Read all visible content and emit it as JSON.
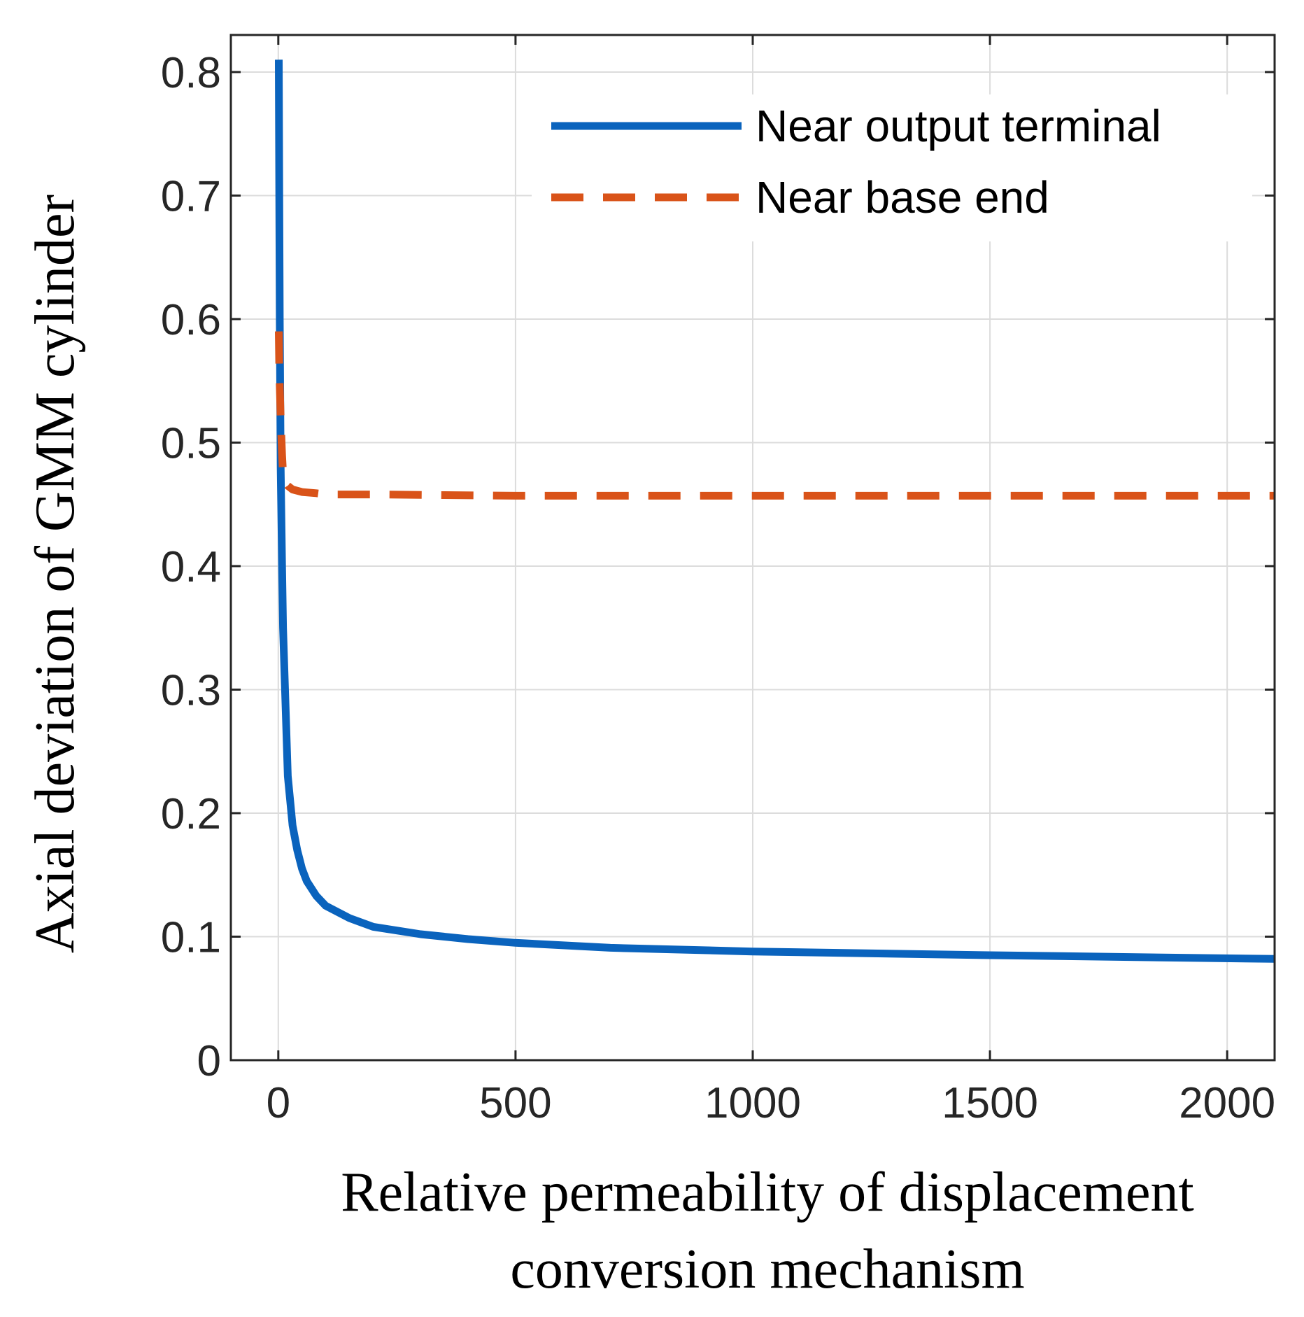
{
  "chart_data": {
    "type": "line",
    "title": "",
    "xlabel_lines": [
      "Relative permeability of displacement",
      "conversion mechanism"
    ],
    "ylabel": "Axial deviation of GMM cylinder",
    "xlim": [
      -100,
      2100
    ],
    "ylim": [
      0,
      0.83
    ],
    "xticks": [
      0,
      500,
      1000,
      1500,
      2000
    ],
    "xtick_labels": [
      "0",
      "500",
      "1000",
      "1500",
      "2000"
    ],
    "yticks": [
      0,
      0.1,
      0.2,
      0.3,
      0.4,
      0.5,
      0.6,
      0.7,
      0.8
    ],
    "ytick_labels": [
      "0",
      "0.1",
      "0.2",
      "0.3",
      "0.4",
      "0.5",
      "0.6",
      "0.7",
      "0.8"
    ],
    "grid": true,
    "legend_position": "top-right",
    "series": [
      {
        "name": "Near output terminal",
        "color": "#0A63BD",
        "style": "solid",
        "x": [
          1,
          2,
          3,
          5,
          8,
          10,
          15,
          20,
          30,
          40,
          50,
          60,
          80,
          100,
          150,
          200,
          300,
          400,
          500,
          700,
          1000,
          1500,
          2100
        ],
        "y": [
          0.81,
          0.7,
          0.6,
          0.48,
          0.4,
          0.35,
          0.29,
          0.23,
          0.19,
          0.17,
          0.155,
          0.145,
          0.133,
          0.125,
          0.115,
          0.108,
          0.102,
          0.098,
          0.095,
          0.091,
          0.088,
          0.085,
          0.082
        ]
      },
      {
        "name": "Near base end",
        "color": "#D95319",
        "style": "dashed",
        "x": [
          1,
          2,
          5,
          8,
          10,
          15,
          20,
          30,
          50,
          80,
          100,
          200,
          500,
          1000,
          1500,
          2100
        ],
        "y": [
          0.59,
          0.56,
          0.52,
          0.49,
          0.475,
          0.468,
          0.465,
          0.462,
          0.46,
          0.459,
          0.458,
          0.458,
          0.457,
          0.457,
          0.457,
          0.457
        ]
      }
    ]
  }
}
